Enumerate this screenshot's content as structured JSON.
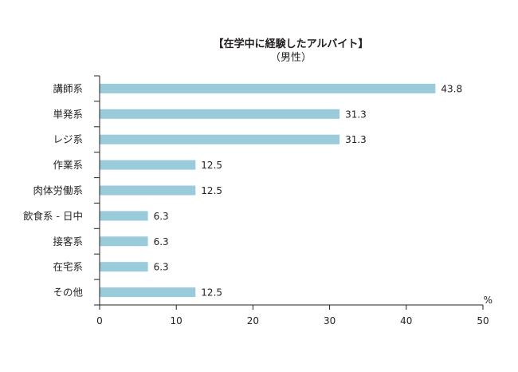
{
  "chart_data": {
    "type": "bar",
    "orientation": "horizontal",
    "title": "【在学中に経験したアルバイト】",
    "subtitle": "（男性）",
    "unit": "%",
    "categories": [
      "講師系",
      "単発系",
      "レジ系",
      "作業系",
      "肉体労働系",
      "飲食系 - 日中",
      "接客系",
      "在宅系",
      "その他"
    ],
    "values": [
      43.8,
      31.3,
      31.3,
      12.5,
      12.5,
      6.3,
      6.3,
      6.3,
      12.5
    ],
    "value_labels": [
      "43.8",
      "31.3",
      "31.3",
      "12.5",
      "12.5",
      "6.3",
      "6.3",
      "6.3",
      "12.5"
    ],
    "xlim": [
      0,
      50
    ],
    "xticks": [
      "0",
      "10",
      "20",
      "30",
      "40",
      "50"
    ],
    "grid": false,
    "bar_color": "#9acbdb",
    "axis_color": "#231f20"
  }
}
